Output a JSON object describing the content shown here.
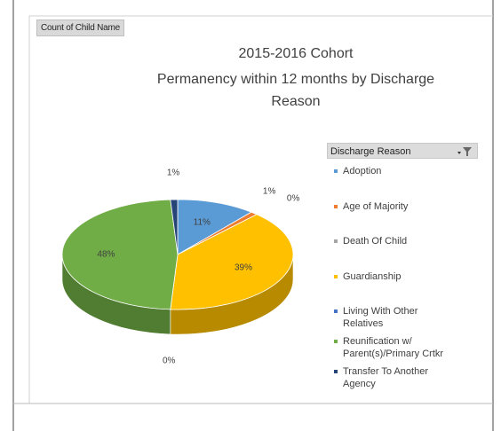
{
  "chart_data": {
    "type": "pie",
    "pivot_field": "Count of Child Name",
    "title": "2015-2016 Cohort",
    "subtitle": "Permanency within 12 months by Discharge Reason",
    "legend_title": "Discharge Reason",
    "legend": "right",
    "categories": [
      "Adoption",
      "Age of Majority",
      "Death Of Child",
      "Guardianship",
      "Living With Other Relatives",
      "Reunification w/ Parent(s)/Primary Crtkr",
      "Transfer To Another Agency"
    ],
    "values": [
      11,
      1,
      0,
      39,
      0,
      48,
      1
    ],
    "value_labels": [
      "11%",
      "1%",
      "0%",
      "39%",
      "0%",
      "48%",
      "1%"
    ],
    "colors": [
      "#5b9bd5",
      "#ed7d31",
      "#a5a5a5",
      "#ffc000",
      "#4472c4",
      "#70ad47",
      "#264478"
    ]
  }
}
